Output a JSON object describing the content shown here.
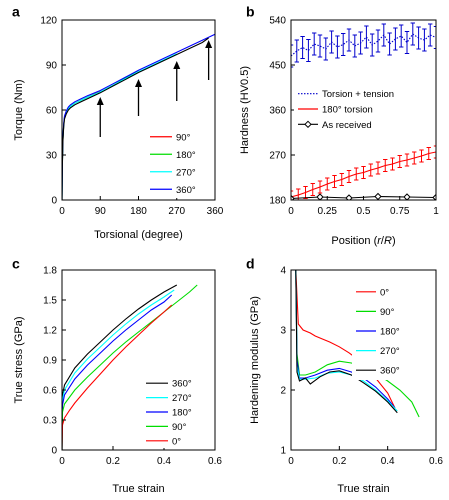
{
  "chart_data": [
    {
      "panel": "a",
      "type": "line",
      "xlabel": "Torsional (degree)",
      "ylabel": "Torque (Nm)",
      "xlim": [
        0,
        360
      ],
      "ylim": [
        0,
        120
      ],
      "xticks": [
        0,
        90,
        180,
        270,
        360
      ],
      "yticks": [
        0,
        30,
        60,
        90,
        120
      ],
      "legend_position": "bottom-right",
      "series": [
        {
          "name": "90°",
          "color": "#ff0000",
          "x": [
            0,
            1,
            2,
            4,
            6,
            10,
            15,
            20,
            30,
            45,
            60,
            75,
            90
          ],
          "y": [
            0,
            25,
            40,
            50,
            55,
            58.5,
            61,
            62.5,
            64.5,
            66.5,
            68.5,
            70.5,
            72.3
          ]
        },
        {
          "name": "180°",
          "color": "#00dd00",
          "x": [
            0,
            1,
            2,
            4,
            6,
            10,
            15,
            20,
            30,
            45,
            60,
            90,
            120,
            150,
            180
          ],
          "y": [
            0,
            25,
            40,
            50,
            55,
            58.5,
            61,
            62.5,
            64.5,
            66.5,
            68.5,
            72,
            76.5,
            81.5,
            86.5
          ]
        },
        {
          "name": "270°",
          "color": "#00ffff",
          "x": [
            0,
            1,
            2,
            4,
            6,
            10,
            15,
            20,
            30,
            45,
            60,
            90,
            120,
            150,
            180,
            210,
            240,
            270
          ],
          "y": [
            0,
            25,
            40,
            50,
            55,
            58.5,
            61,
            62.5,
            64.5,
            66.5,
            68.5,
            72,
            76.5,
            81,
            85.5,
            89.5,
            93.5,
            97.5
          ]
        },
        {
          "name": "360°",
          "color": "#0000ff",
          "x": [
            0,
            1,
            2,
            4,
            6,
            10,
            15,
            20,
            30,
            45,
            60,
            90,
            120,
            150,
            180,
            210,
            240,
            270,
            300,
            330,
            360
          ],
          "y": [
            0,
            26,
            41,
            51,
            56,
            59.5,
            62,
            63.5,
            65.5,
            67.5,
            69.5,
            73,
            77.5,
            82,
            86.5,
            90.5,
            94.5,
            98.5,
            102.5,
            106.5,
            110.5
          ]
        },
        {
          "name": "",
          "color": "#000000",
          "x": [
            0,
            1,
            2,
            4,
            6,
            10,
            15,
            20,
            30,
            45,
            60,
            90,
            120,
            150,
            180,
            210,
            240,
            270,
            300,
            330,
            345
          ],
          "y": [
            0,
            24,
            39,
            49,
            54,
            57.5,
            60,
            61.5,
            63.5,
            65.5,
            67.5,
            71.5,
            76,
            80.5,
            85,
            89,
            93,
            97,
            101,
            105,
            108
          ]
        }
      ],
      "annotations": [
        {
          "type": "arrow",
          "x": 90,
          "from": 42,
          "to": 68
        },
        {
          "type": "arrow",
          "x": 180,
          "from": 56,
          "to": 80
        },
        {
          "type": "arrow",
          "x": 270,
          "from": 66,
          "to": 92
        },
        {
          "type": "arrow",
          "x": 345,
          "from": 80,
          "to": 106
        }
      ]
    },
    {
      "panel": "b",
      "type": "line",
      "xlabel": "Position (r/R)",
      "ylabel": "Hardness (HV0.5)",
      "xlim": [
        0,
        1
      ],
      "ylim": [
        180,
        540
      ],
      "xticks": [
        0,
        0.25,
        0.5,
        0.75,
        1
      ],
      "yticks": [
        180,
        270,
        360,
        450,
        540
      ],
      "legend_position": "middle-right",
      "series": [
        {
          "name": "Torsion + tension",
          "color": "#0000cc",
          "style": "dotted",
          "errorbars": true,
          "err": 22,
          "x": [
            0,
            0.04,
            0.08,
            0.12,
            0.16,
            0.2,
            0.24,
            0.28,
            0.32,
            0.36,
            0.4,
            0.44,
            0.48,
            0.52,
            0.56,
            0.6,
            0.64,
            0.68,
            0.72,
            0.76,
            0.8,
            0.84,
            0.88,
            0.92,
            0.96,
            1.0
          ],
          "y": [
            468,
            478,
            485,
            479,
            492,
            488,
            482,
            496,
            486,
            491,
            500,
            488,
            494,
            506,
            490,
            498,
            510,
            492,
            502,
            508,
            495,
            512,
            504,
            500,
            510,
            505
          ]
        },
        {
          "name": "180° torsion",
          "color": "#ff0000",
          "style": "solid",
          "errorbars": true,
          "err": 12,
          "x": [
            0,
            0.05,
            0.1,
            0.15,
            0.2,
            0.25,
            0.3,
            0.35,
            0.4,
            0.45,
            0.5,
            0.55,
            0.6,
            0.65,
            0.7,
            0.75,
            0.8,
            0.85,
            0.9,
            0.95,
            1.0
          ],
          "y": [
            186,
            190,
            195,
            201,
            206,
            212,
            217,
            221,
            227,
            232,
            235,
            240,
            244,
            249,
            252,
            257,
            260,
            264,
            268,
            273,
            276
          ]
        },
        {
          "name": "As received",
          "color": "#000000",
          "style": "solid",
          "markers": "diamond",
          "x": [
            0,
            0.2,
            0.4,
            0.6,
            0.8,
            1.0
          ],
          "y": [
            183,
            186,
            184,
            187,
            186,
            185
          ]
        }
      ]
    },
    {
      "panel": "c",
      "type": "line",
      "xlabel": "True strain",
      "ylabel": "True stress (GPa)",
      "xlim": [
        0,
        0.6
      ],
      "ylim": [
        0,
        1.8
      ],
      "xticks": [
        0,
        0.2,
        0.4,
        0.6
      ],
      "yticks": [
        0,
        0.3,
        0.6,
        0.9,
        1.2,
        1.5,
        1.8
      ],
      "legend_position": "bottom-right",
      "series": [
        {
          "name": "360°",
          "color": "#000000",
          "x": [
            0,
            0.002,
            0.01,
            0.05,
            0.1,
            0.15,
            0.2,
            0.25,
            0.3,
            0.35,
            0.4,
            0.45
          ],
          "y": [
            0,
            0.55,
            0.65,
            0.82,
            0.96,
            1.08,
            1.2,
            1.31,
            1.41,
            1.5,
            1.58,
            1.65
          ]
        },
        {
          "name": "270°",
          "color": "#00ffff",
          "x": [
            0,
            0.002,
            0.01,
            0.05,
            0.1,
            0.15,
            0.2,
            0.25,
            0.3,
            0.35,
            0.4,
            0.44
          ],
          "y": [
            0,
            0.5,
            0.6,
            0.77,
            0.91,
            1.03,
            1.15,
            1.26,
            1.36,
            1.45,
            1.53,
            1.6
          ]
        },
        {
          "name": "180°",
          "color": "#0000ff",
          "x": [
            0,
            0.002,
            0.01,
            0.05,
            0.1,
            0.15,
            0.2,
            0.25,
            0.3,
            0.35,
            0.4,
            0.43
          ],
          "y": [
            0,
            0.45,
            0.55,
            0.71,
            0.85,
            0.97,
            1.09,
            1.2,
            1.3,
            1.4,
            1.48,
            1.55
          ]
        },
        {
          "name": "90°",
          "color": "#00dd00",
          "x": [
            0,
            0.002,
            0.01,
            0.05,
            0.1,
            0.15,
            0.2,
            0.25,
            0.3,
            0.35,
            0.4,
            0.45,
            0.5,
            0.53
          ],
          "y": [
            0,
            0.38,
            0.46,
            0.6,
            0.73,
            0.85,
            0.97,
            1.08,
            1.18,
            1.28,
            1.38,
            1.48,
            1.58,
            1.65
          ]
        },
        {
          "name": "0°",
          "color": "#ff0000",
          "x": [
            0,
            0.002,
            0.01,
            0.03,
            0.05,
            0.1,
            0.15,
            0.2,
            0.25,
            0.3,
            0.35,
            0.4,
            0.43
          ],
          "y": [
            0,
            0.25,
            0.32,
            0.4,
            0.47,
            0.62,
            0.76,
            0.9,
            1.03,
            1.15,
            1.27,
            1.38,
            1.45
          ]
        }
      ]
    },
    {
      "panel": "d",
      "type": "line",
      "xlabel": "True strain",
      "ylabel": "Hardening modulus (GPa)",
      "xlim": [
        0,
        0.6
      ],
      "ylim": [
        1,
        4
      ],
      "xticks": [
        0,
        0.2,
        0.4,
        0.6
      ],
      "yticks": [
        1,
        2,
        3,
        4
      ],
      "legend_position": "top-right",
      "series": [
        {
          "name": "0°",
          "color": "#ff0000",
          "x": [
            0.02,
            0.03,
            0.05,
            0.08,
            0.1,
            0.13,
            0.16,
            0.2,
            0.24,
            0.28,
            0.32,
            0.36,
            0.4,
            0.43
          ],
          "y": [
            4.0,
            3.1,
            3.0,
            2.95,
            2.9,
            2.85,
            2.8,
            2.72,
            2.62,
            2.5,
            2.35,
            2.15,
            1.95,
            1.7
          ]
        },
        {
          "name": "90°",
          "color": "#00dd00",
          "x": [
            0.02,
            0.025,
            0.035,
            0.06,
            0.1,
            0.15,
            0.2,
            0.25,
            0.3,
            0.35,
            0.4,
            0.45,
            0.5,
            0.53
          ],
          "y": [
            4.0,
            2.6,
            2.25,
            2.25,
            2.3,
            2.42,
            2.48,
            2.45,
            2.38,
            2.28,
            2.15,
            2.0,
            1.8,
            1.55
          ]
        },
        {
          "name": "180°",
          "color": "#0000ff",
          "x": [
            0.02,
            0.025,
            0.035,
            0.06,
            0.1,
            0.15,
            0.2,
            0.25,
            0.3,
            0.35,
            0.4,
            0.43
          ],
          "y": [
            4.0,
            2.5,
            2.2,
            2.2,
            2.25,
            2.33,
            2.36,
            2.3,
            2.2,
            2.05,
            1.85,
            1.7
          ]
        },
        {
          "name": "270°",
          "color": "#00ffff",
          "x": [
            0.02,
            0.025,
            0.035,
            0.06,
            0.1,
            0.15,
            0.2,
            0.25,
            0.3,
            0.35,
            0.4,
            0.44
          ],
          "y": [
            4.0,
            2.4,
            2.18,
            2.18,
            2.2,
            2.28,
            2.3,
            2.25,
            2.15,
            2.0,
            1.82,
            1.65
          ]
        },
        {
          "name": "360°",
          "color": "#000000",
          "x": [
            0.02,
            0.025,
            0.035,
            0.06,
            0.08,
            0.12,
            0.16,
            0.2,
            0.25,
            0.3,
            0.35,
            0.4,
            0.44
          ],
          "y": [
            4.0,
            2.3,
            2.15,
            2.2,
            2.1,
            2.22,
            2.3,
            2.32,
            2.25,
            2.12,
            1.98,
            1.8,
            1.62
          ]
        }
      ]
    }
  ],
  "labels": {
    "panel_a": "a",
    "panel_b": "b",
    "panel_c": "c",
    "panel_d": "d"
  }
}
